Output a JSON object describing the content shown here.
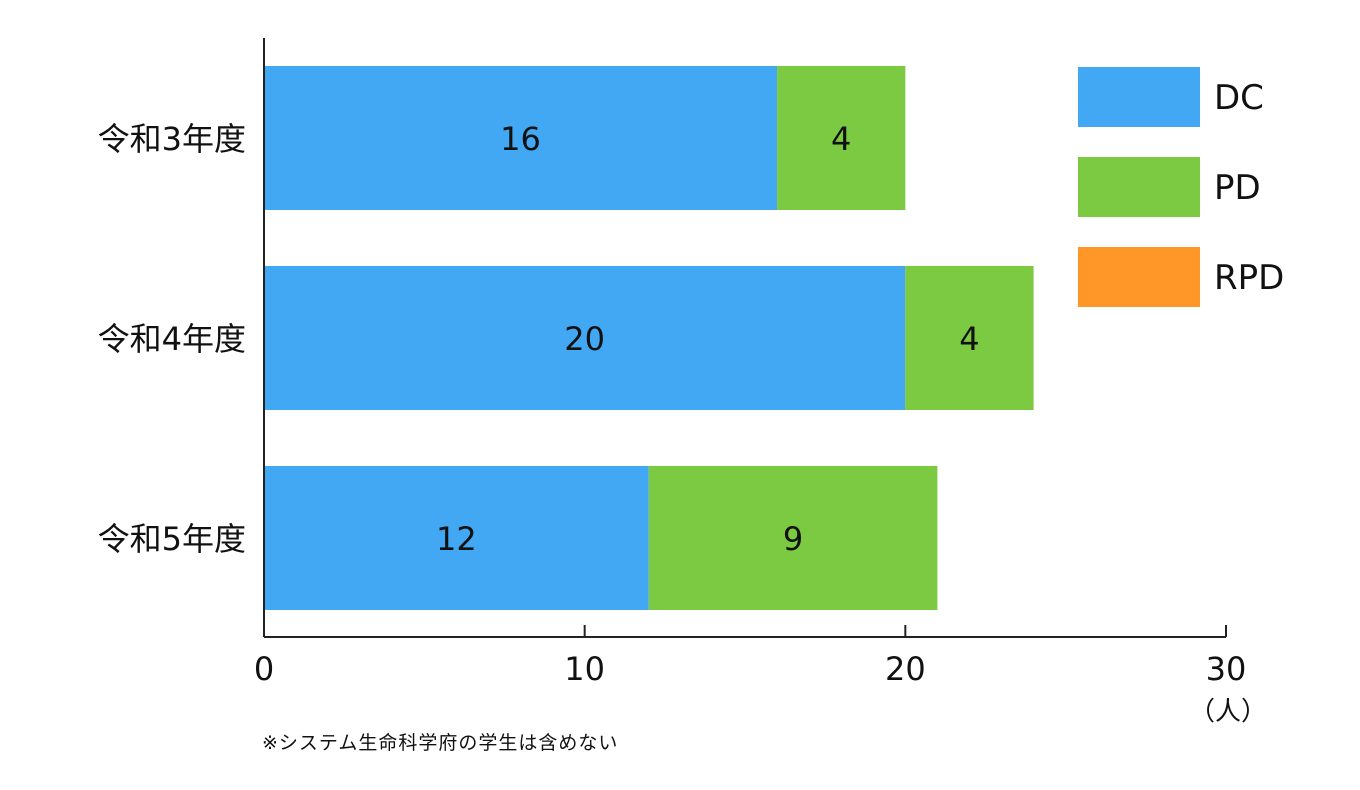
{
  "chart_data": {
    "type": "bar",
    "orientation": "horizontal",
    "stacked": true,
    "categories": [
      "令和3年度",
      "令和4年度",
      "令和5年度"
    ],
    "series": [
      {
        "name": "DC",
        "color": "#42a8f4",
        "values": [
          16,
          20,
          12
        ]
      },
      {
        "name": "PD",
        "color": "#7cc942",
        "values": [
          4,
          4,
          9
        ]
      },
      {
        "name": "RPD",
        "color": "#fe9628",
        "values": [
          0,
          0,
          0
        ]
      }
    ],
    "xlim": [
      0,
      30
    ],
    "xticks": [
      "0",
      "10",
      "20",
      "30"
    ],
    "xlabel": "（人）",
    "legend_position": "top-right",
    "grid": false,
    "data_labels": true
  },
  "footnote": "※システム生命科学府の学生は含めない"
}
